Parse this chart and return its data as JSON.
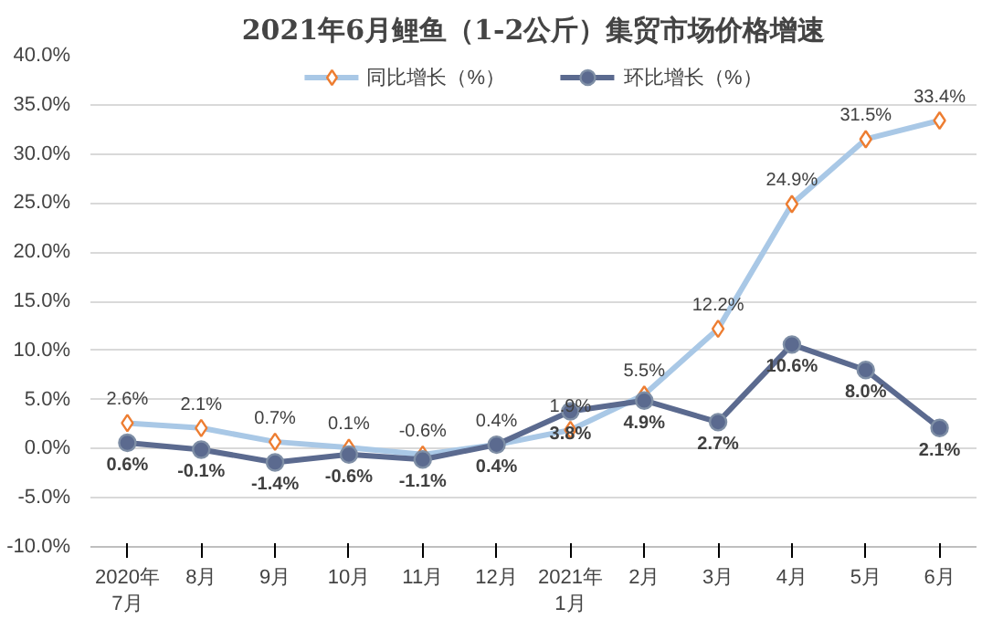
{
  "chart_data": {
    "type": "line",
    "title": "2021年6月鲤鱼（1-2公斤）集贸市场价格增速",
    "categories": [
      "2020年\n7月",
      "8月",
      "9月",
      "10月",
      "11月",
      "12月",
      "2021年\n1月",
      "2月",
      "3月",
      "4月",
      "5月",
      "6月"
    ],
    "series": [
      {
        "name": "同比增长（%）",
        "color": "#a9c8e6",
        "marker": "diamond",
        "values": [
          2.6,
          2.1,
          0.7,
          0.1,
          -0.6,
          0.4,
          1.9,
          5.5,
          12.2,
          24.9,
          31.5,
          33.4
        ],
        "value_labels": [
          "2.6%",
          "2.1%",
          "0.7%",
          "0.1%",
          "-0.6%",
          "0.4%",
          "1.9%",
          "5.5%",
          "12.2%",
          "24.9%",
          "31.5%",
          "33.4%"
        ]
      },
      {
        "name": "环比增长（%）",
        "color": "#5b6a8f",
        "marker": "circle",
        "values": [
          0.6,
          -0.1,
          -1.4,
          -0.6,
          -1.1,
          0.4,
          3.8,
          4.9,
          2.7,
          10.6,
          8.0,
          2.1
        ],
        "value_labels": [
          "0.6%",
          "-0.1%",
          "-1.4%",
          "-0.6%",
          "-1.1%",
          "0.4%",
          "3.8%",
          "4.9%",
          "2.7%",
          "10.6%",
          "8.0%",
          "2.1%"
        ]
      }
    ],
    "ylim": [
      -10,
      40
    ],
    "yticks": [
      {
        "value": -10,
        "label": "-10.0%"
      },
      {
        "value": -5,
        "label": "-5.0%"
      },
      {
        "value": 0,
        "label": "0.0%"
      },
      {
        "value": 5,
        "label": "5.0%"
      },
      {
        "value": 10,
        "label": "10.0%"
      },
      {
        "value": 15,
        "label": "15.0%"
      },
      {
        "value": 20,
        "label": "20.0%"
      },
      {
        "value": 25,
        "label": "25.0%"
      },
      {
        "value": 30,
        "label": "30.0%"
      },
      {
        "value": 35,
        "label": "35.0%"
      },
      {
        "value": 40,
        "label": "40.0%"
      }
    ],
    "grid": "y",
    "legend": "top"
  }
}
